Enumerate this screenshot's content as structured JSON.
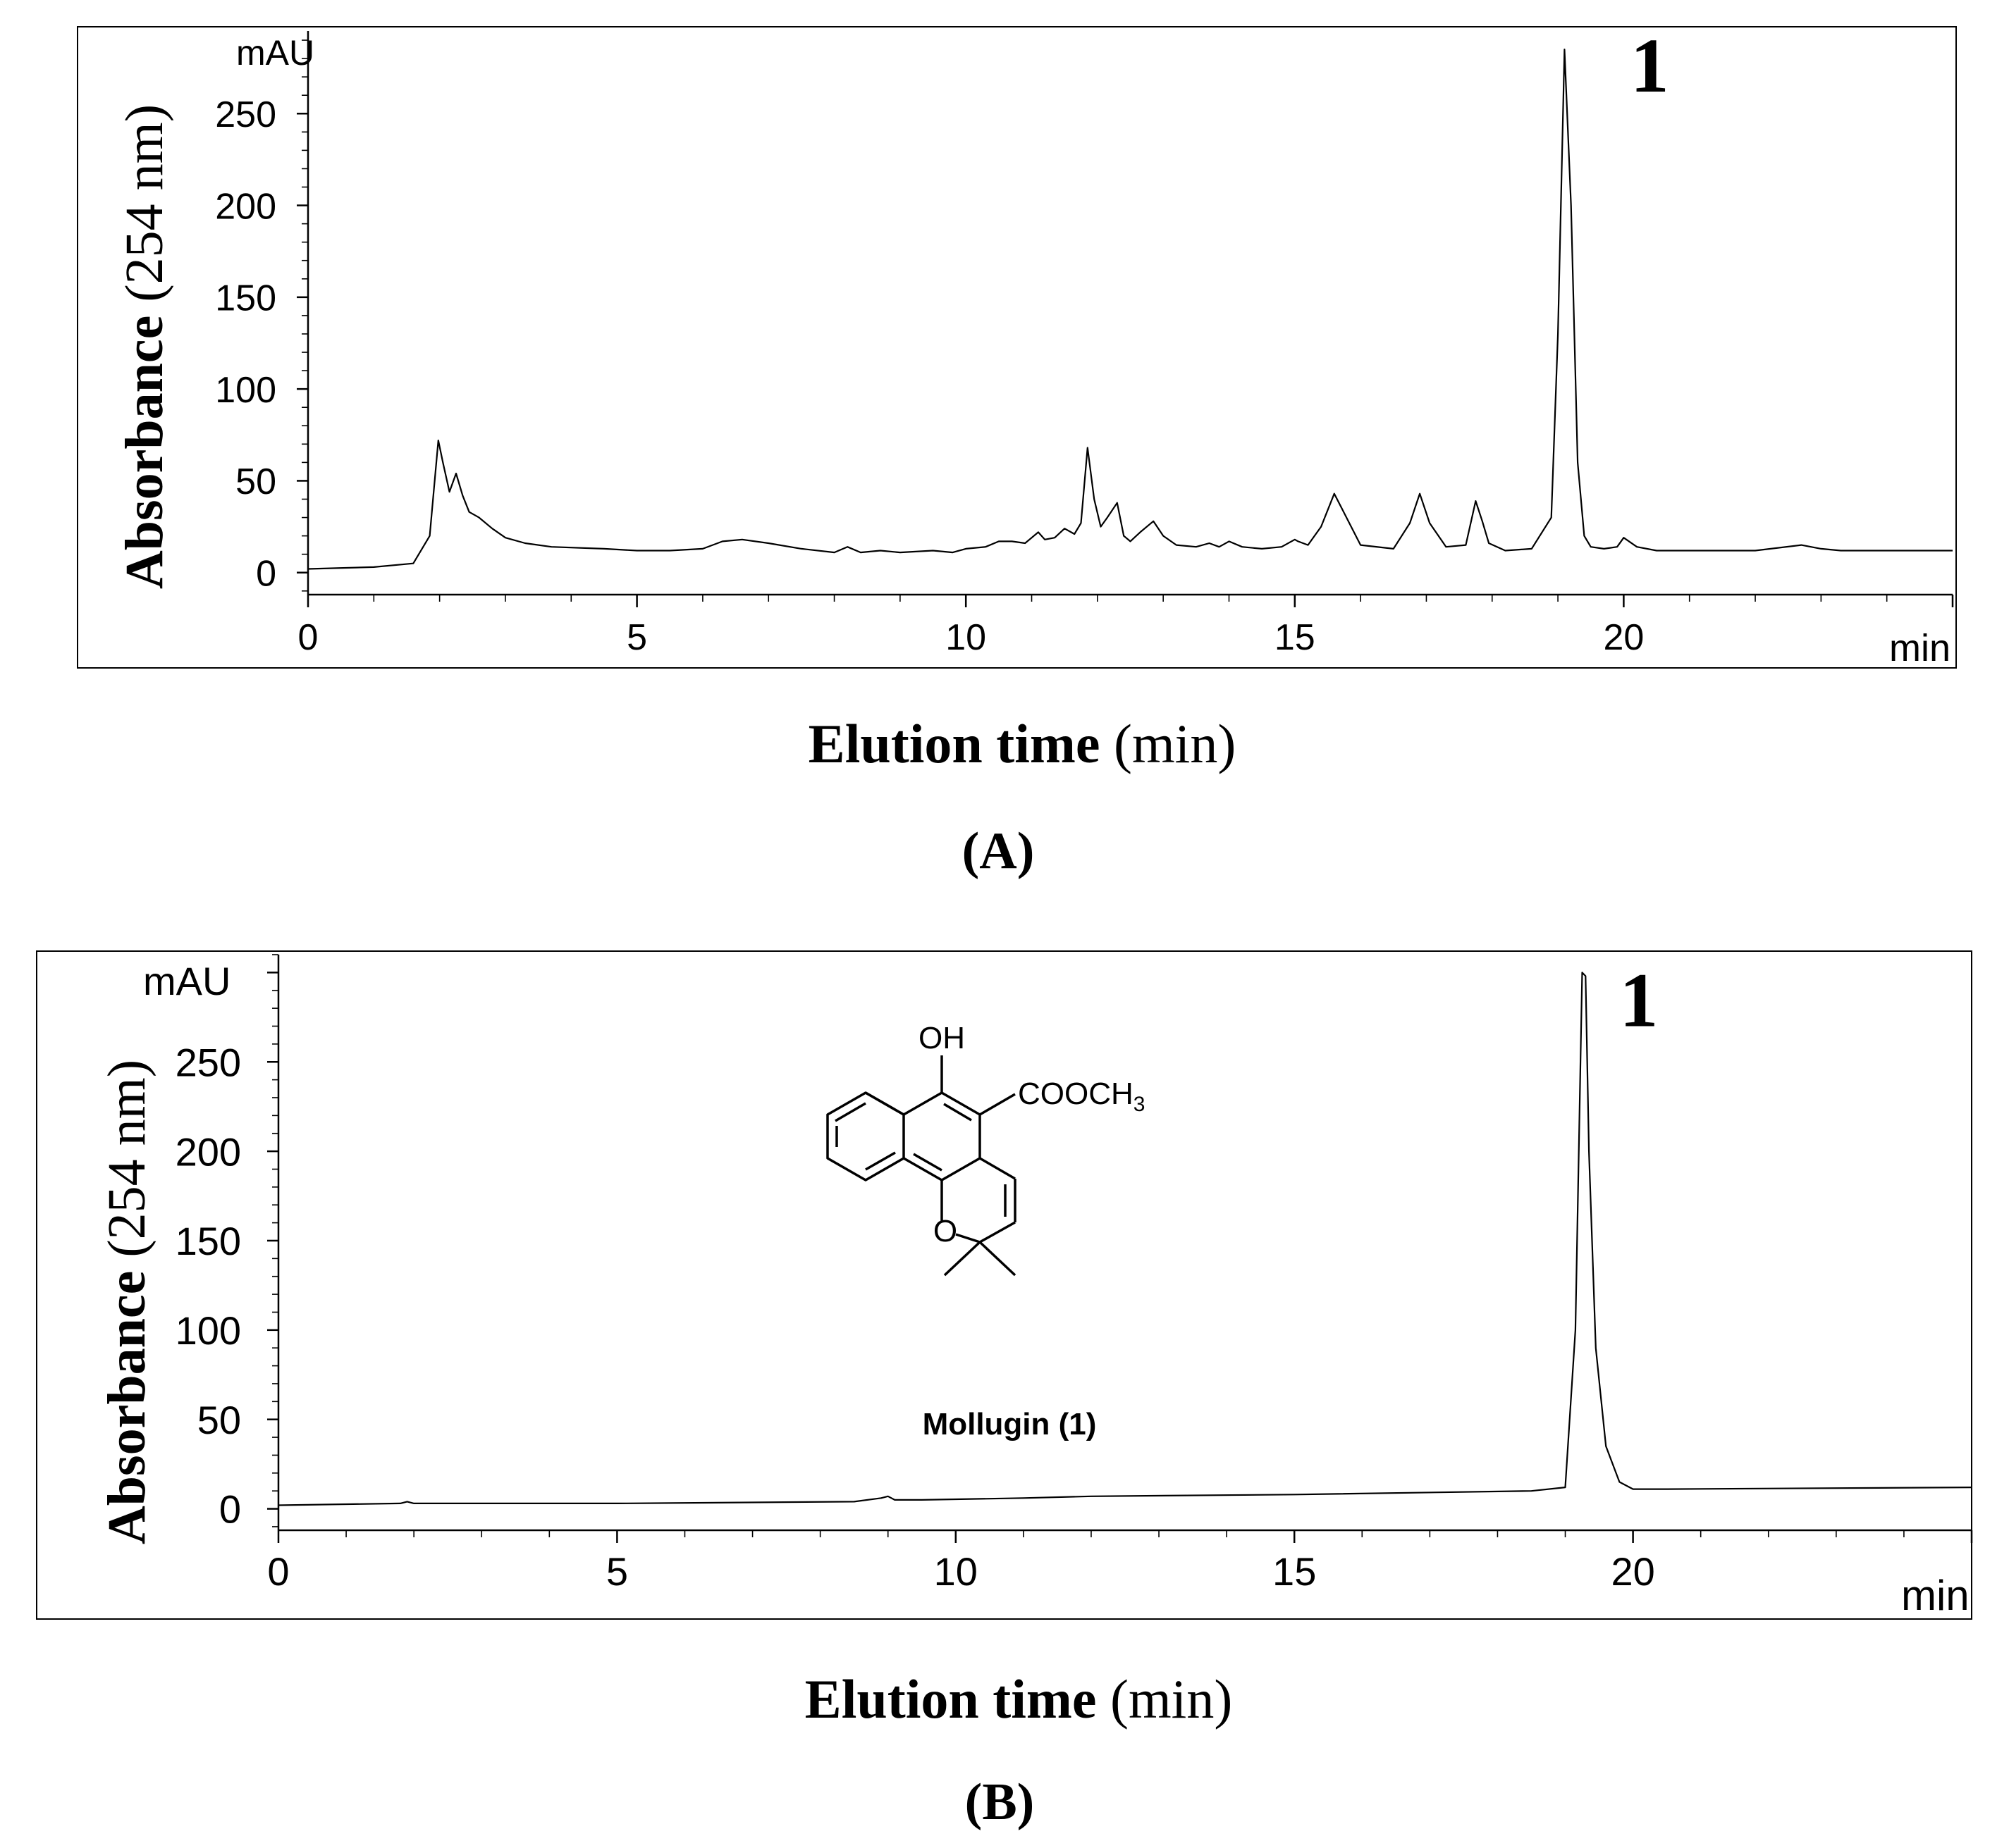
{
  "chart_data": [
    {
      "panel": "A",
      "type": "line",
      "xlabel_bold": "Elution time",
      "xlabel_unit": "(min)",
      "ylabel_bold": "Absorbance",
      "ylabel_unit": "(254 nm)",
      "y_unit": "mAU",
      "x_unit": "min",
      "xlim": [
        0,
        25
      ],
      "ylim": [
        -12,
        295
      ],
      "x_ticks": [
        0,
        5,
        10,
        15,
        20
      ],
      "y_ticks": [
        0,
        50,
        100,
        150,
        200,
        250
      ],
      "grid": false,
      "peak_label": "1",
      "peak_label_x": 20.1,
      "peak_label_y": 262,
      "caption": "(A)",
      "series": [
        {
          "x": [
            0,
            1.0,
            1.6,
            1.85,
            1.98,
            2.05,
            2.15,
            2.25,
            2.35,
            2.45,
            2.6,
            2.8,
            3.0,
            3.3,
            3.7,
            4.5,
            5.0,
            5.5,
            6.0,
            6.3,
            6.6,
            7.0,
            7.5,
            8.0,
            8.2,
            8.4,
            8.7,
            9.0,
            9.5,
            9.8,
            10.0,
            10.3,
            10.5,
            10.7,
            10.9,
            11.1,
            11.2,
            11.35,
            11.5,
            11.65,
            11.75,
            11.85,
            11.95,
            12.05,
            12.15,
            12.3,
            12.4,
            12.5,
            12.65,
            12.85,
            13.0,
            13.2,
            13.5,
            13.7,
            13.85,
            14.0,
            14.2,
            14.5,
            14.8,
            15.0,
            15.05,
            15.2,
            15.4,
            15.6,
            15.8,
            16.0,
            16.5,
            16.75,
            16.9,
            17.05,
            17.3,
            17.6,
            17.75,
            17.85,
            17.95,
            18.2,
            18.6,
            18.9,
            19.0,
            19.1,
            19.2,
            19.3,
            19.4,
            19.5,
            19.7,
            19.9,
            20.0,
            20.2,
            20.5,
            22.0,
            22.7,
            23.0,
            23.3,
            25.0
          ],
          "y": [
            2,
            3,
            5,
            20,
            72,
            60,
            44,
            54,
            42,
            33,
            30,
            24,
            19,
            16,
            14,
            13,
            12,
            12,
            13,
            17,
            18,
            16,
            13,
            11,
            14,
            11,
            12,
            11,
            12,
            11,
            13,
            14,
            17,
            17,
            16,
            22,
            18,
            19,
            24,
            21,
            27,
            68,
            40,
            25,
            30,
            38,
            20,
            17,
            22,
            28,
            20,
            15,
            14,
            16,
            14,
            17,
            14,
            13,
            14,
            18,
            17,
            15,
            25,
            43,
            29,
            15,
            13,
            27,
            43,
            27,
            14,
            15,
            39,
            28,
            16,
            12,
            13,
            30,
            130,
            285,
            200,
            60,
            20,
            14,
            13,
            14,
            19,
            14,
            12,
            12,
            15,
            13,
            12,
            12
          ]
        }
      ]
    },
    {
      "panel": "B",
      "type": "line",
      "xlabel_bold": "Elution time",
      "xlabel_unit": "(min)",
      "ylabel_bold": "Absorbance",
      "ylabel_unit": "(254 nm)",
      "y_unit": "mAU",
      "x_unit": "min",
      "xlim": [
        0,
        25
      ],
      "ylim": [
        -12,
        310
      ],
      "x_ticks": [
        0,
        5,
        10,
        15,
        20
      ],
      "y_ticks": [
        0,
        50,
        100,
        150,
        200,
        250
      ],
      "grid": false,
      "peak_label": "1",
      "peak_label_x": 19.8,
      "peak_label_y": 270,
      "caption": "(B)",
      "annotations": {
        "compound_name": "Mollugin (1)",
        "oh_label": "OH",
        "ester_label": "COOCH",
        "ester_subscript": "3",
        "ring_o_label": "O"
      },
      "series": [
        {
          "x": [
            0,
            1.8,
            1.9,
            2.0,
            5.0,
            8.5,
            8.9,
            9.0,
            9.1,
            9.5,
            11.0,
            12.0,
            15.0,
            18.5,
            19.0,
            19.15,
            19.25,
            19.3,
            19.35,
            19.45,
            19.6,
            19.8,
            20.0,
            20.5,
            25.0
          ],
          "y": [
            2,
            3,
            4,
            3,
            3,
            4,
            6,
            7,
            5,
            5,
            6,
            7,
            8,
            10,
            12,
            100,
            300,
            298,
            200,
            90,
            35,
            15,
            11,
            11,
            12
          ]
        }
      ]
    }
  ]
}
